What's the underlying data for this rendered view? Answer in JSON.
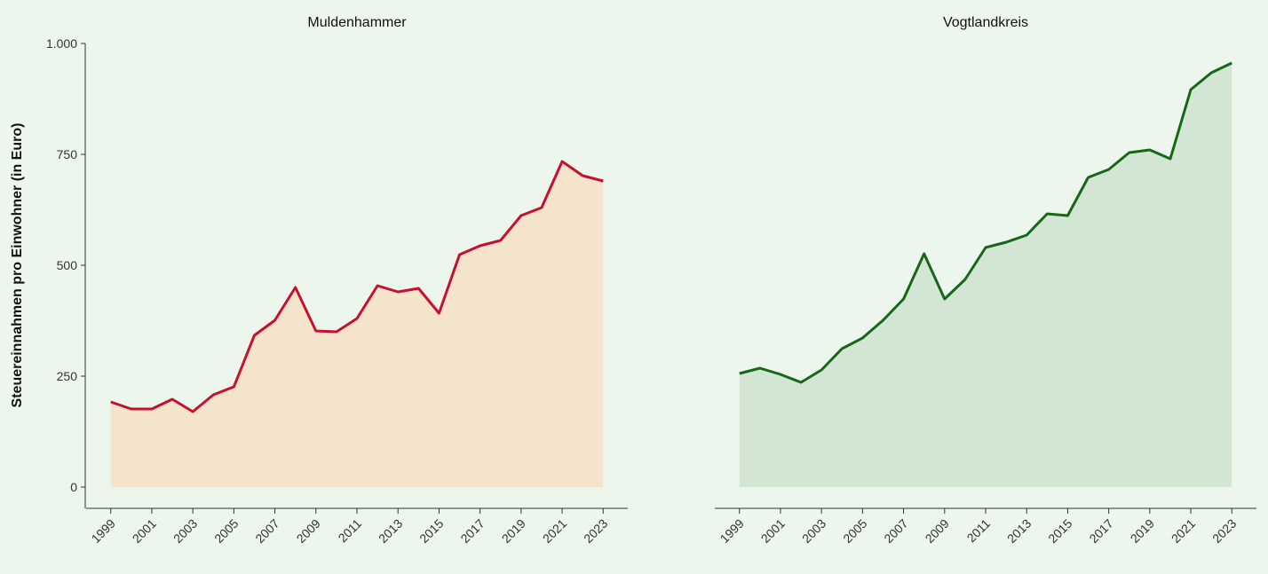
{
  "chart_data": [
    {
      "type": "area",
      "title": "Muldenhammer",
      "ylabel": "Steuereinnahmen pro Einwohner (in Euro)",
      "x": [
        1999,
        2000,
        2001,
        2002,
        2003,
        2004,
        2005,
        2006,
        2007,
        2008,
        2009,
        2010,
        2011,
        2012,
        2013,
        2014,
        2015,
        2016,
        2017,
        2018,
        2019,
        2020,
        2021,
        2022,
        2023
      ],
      "series": [
        {
          "color": "#c8102e",
          "fill": "#f5e4cc",
          "values": [
            192,
            176,
            176,
            198,
            170,
            208,
            226,
            342,
            376,
            450,
            352,
            350,
            380,
            454,
            440,
            448,
            392,
            524,
            544,
            556,
            612,
            630,
            734,
            702,
            690
          ]
        }
      ],
      "xlim": [
        1997.8,
        2024.2
      ],
      "xticks": [
        1999,
        2001,
        2003,
        2005,
        2007,
        2009,
        2011,
        2013,
        2015,
        2017,
        2019,
        2021,
        2023
      ],
      "ylim": [
        -48,
        1000
      ],
      "yticks": [
        0,
        250,
        500,
        750,
        {
          "value": 1000,
          "label": "1.000"
        }
      ]
    },
    {
      "type": "area",
      "title": "Vogtlandkreis",
      "x": [
        1999,
        2000,
        2001,
        2002,
        2003,
        2004,
        2005,
        2006,
        2007,
        2008,
        2009,
        2010,
        2011,
        2012,
        2013,
        2014,
        2015,
        2016,
        2017,
        2018,
        2019,
        2020,
        2021,
        2022,
        2023
      ],
      "series": [
        {
          "color": "#17661a",
          "fill": "#d3e6d3",
          "values": [
            256,
            268,
            254,
            236,
            264,
            312,
            336,
            376,
            424,
            526,
            424,
            468,
            540,
            552,
            568,
            616,
            612,
            698,
            716,
            754,
            760,
            740,
            896,
            934,
            956
          ]
        }
      ],
      "xlim": [
        1997.8,
        2024.2
      ],
      "xticks": [
        1999,
        2001,
        2003,
        2005,
        2007,
        2009,
        2011,
        2013,
        2015,
        2017,
        2019,
        2021,
        2023
      ],
      "ylim": [
        -48,
        1000
      ]
    }
  ]
}
